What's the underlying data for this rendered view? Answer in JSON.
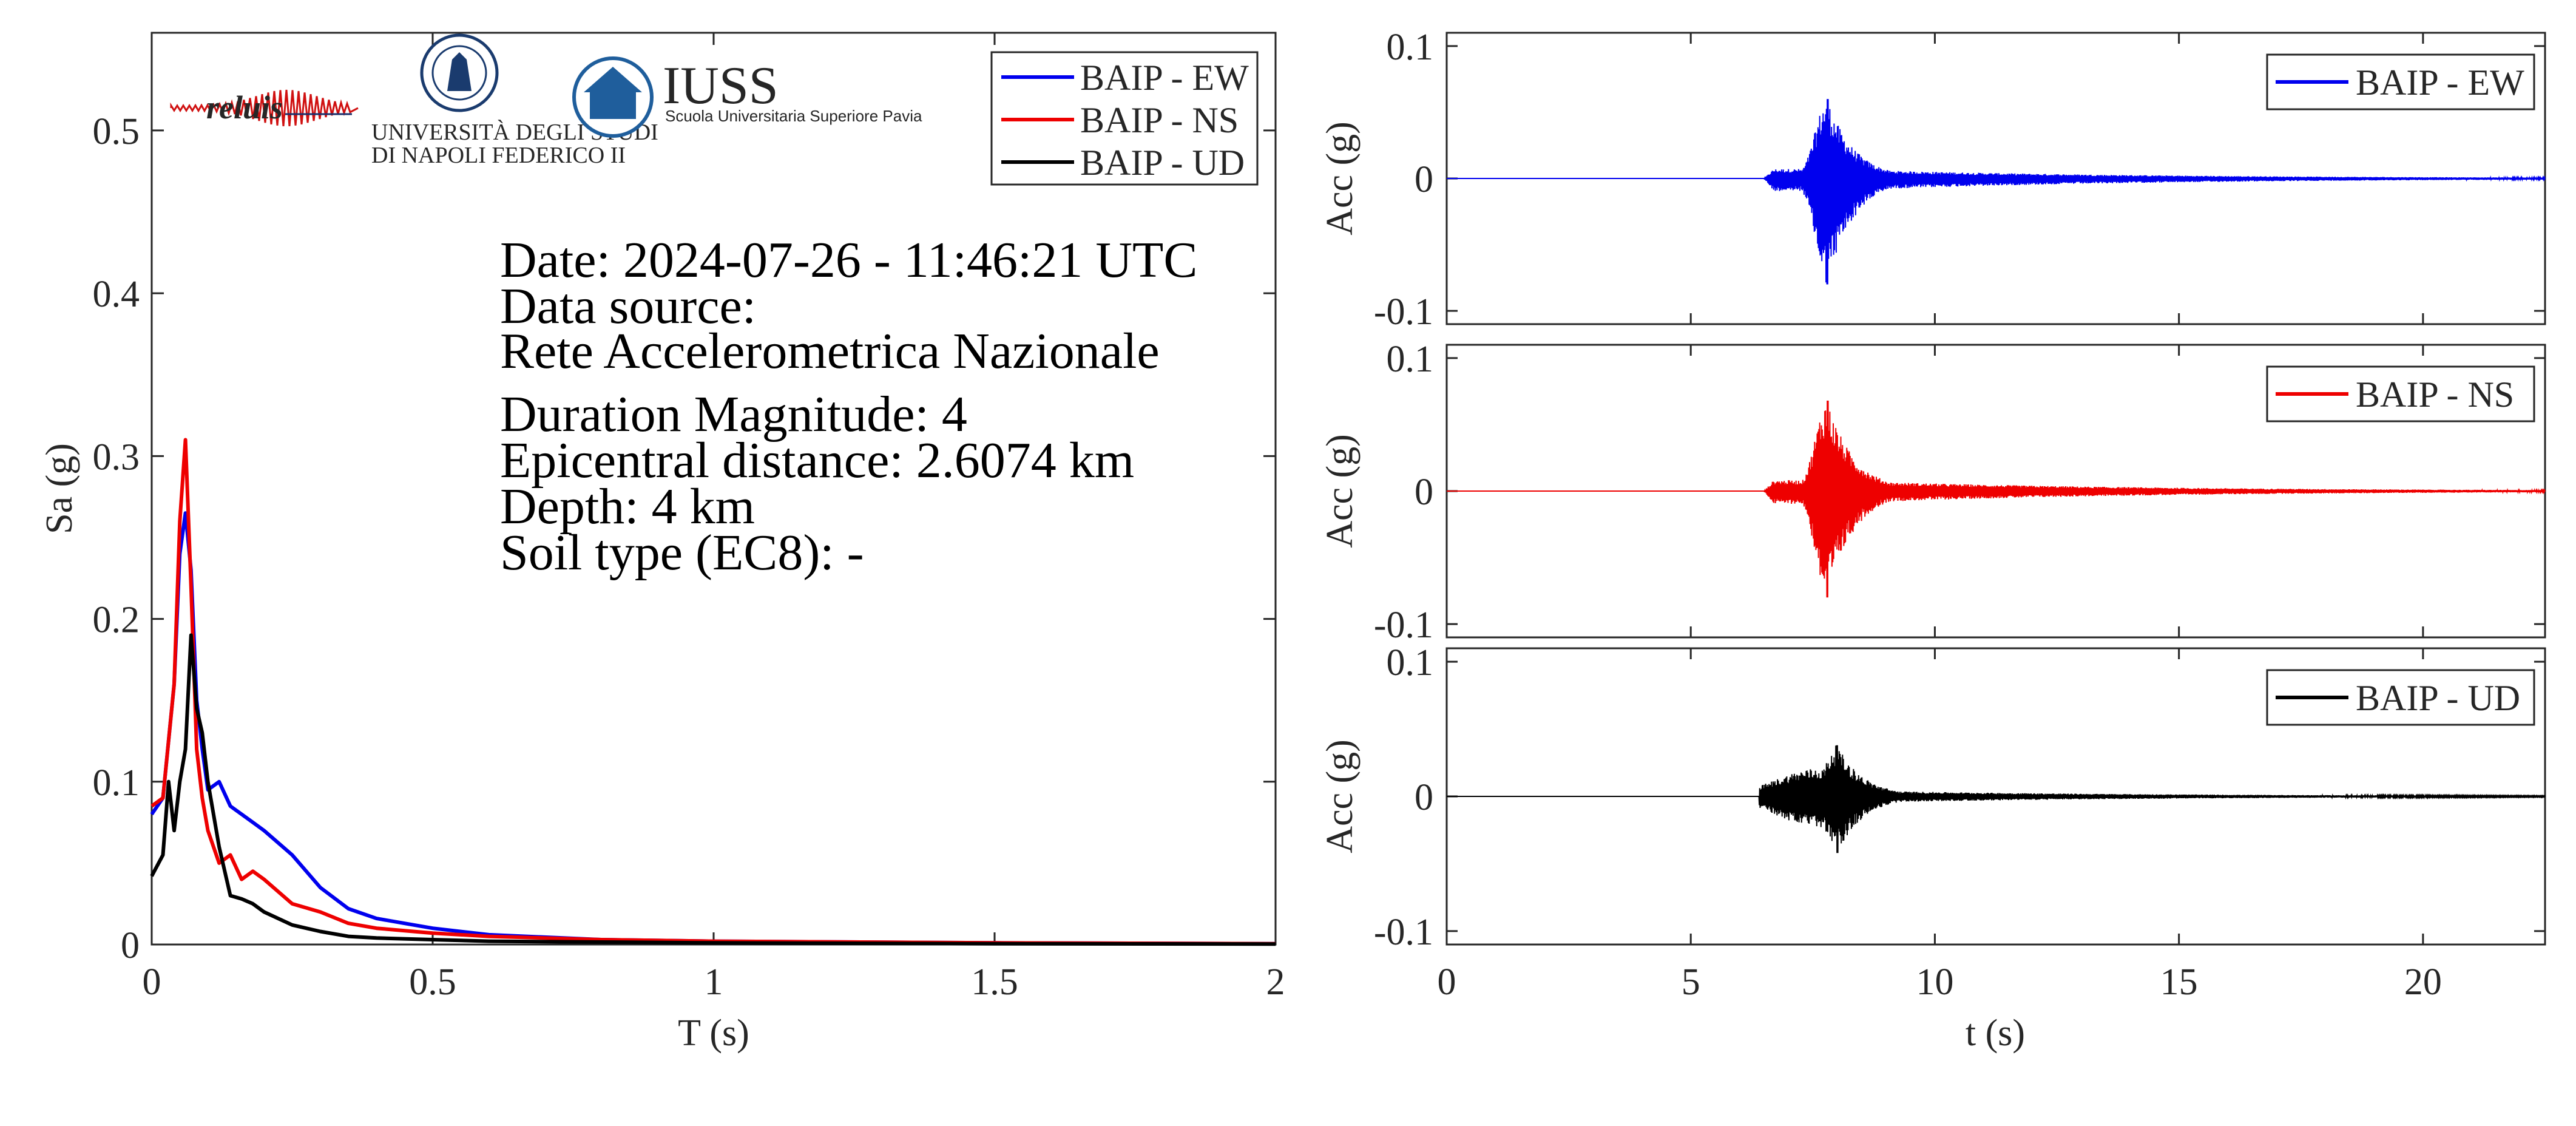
{
  "colors": {
    "ew": "#0000ee",
    "ns": "#ee0000",
    "ud": "#000000",
    "axis": "#262626"
  },
  "info_lines": [
    "Date: 2024-07-26 - 11:46:21 UTC",
    "Data source:",
    "Rete Accelerometrica Nazionale",
    "Duration Magnitude: 4",
    "Epicentral distance: 2.6074 km",
    "Depth: 4 km",
    "Soil type (EC8): -"
  ],
  "logos": {
    "reluis": "reluis",
    "unina_line1": "UNIVERSITÀ DEGLI STUDI",
    "unina_line2": "DI NAPOLI FEDERICO II",
    "iuss": "IUSS",
    "iuss_sub": "Scuola Universitaria Superiore Pavia"
  },
  "chart_data": [
    {
      "type": "line",
      "xlabel": "T (s)",
      "ylabel": "Sa (g)",
      "xlim": [
        0,
        2
      ],
      "ylim": [
        0,
        0.56
      ],
      "xticks": [
        "0",
        "0.5",
        "1",
        "1.5",
        "2"
      ],
      "yticks": [
        "0",
        "0.1",
        "0.2",
        "0.3",
        "0.4",
        "0.5"
      ],
      "legend_position": "top-right",
      "series": [
        {
          "name": "BAIP - EW",
          "x": [
            0,
            0.02,
            0.04,
            0.05,
            0.06,
            0.07,
            0.08,
            0.09,
            0.1,
            0.12,
            0.14,
            0.16,
            0.18,
            0.2,
            0.25,
            0.3,
            0.35,
            0.4,
            0.5,
            0.6,
            0.8,
            1.0,
            1.5,
            2.0
          ],
          "y": [
            0.08,
            0.09,
            0.16,
            0.24,
            0.265,
            0.23,
            0.15,
            0.12,
            0.095,
            0.1,
            0.085,
            0.08,
            0.075,
            0.07,
            0.055,
            0.035,
            0.022,
            0.016,
            0.01,
            0.006,
            0.003,
            0.002,
            0.001,
            0.0005
          ]
        },
        {
          "name": "BAIP - NS",
          "x": [
            0,
            0.02,
            0.04,
            0.05,
            0.06,
            0.07,
            0.08,
            0.09,
            0.1,
            0.12,
            0.14,
            0.16,
            0.18,
            0.2,
            0.25,
            0.3,
            0.35,
            0.4,
            0.5,
            0.6,
            0.8,
            1.0,
            1.5,
            2.0
          ],
          "y": [
            0.085,
            0.09,
            0.16,
            0.26,
            0.31,
            0.22,
            0.12,
            0.09,
            0.07,
            0.05,
            0.055,
            0.04,
            0.045,
            0.04,
            0.025,
            0.02,
            0.013,
            0.01,
            0.007,
            0.005,
            0.003,
            0.002,
            0.001,
            0.0005
          ]
        },
        {
          "name": "BAIP - UD",
          "x": [
            0,
            0.02,
            0.03,
            0.04,
            0.05,
            0.06,
            0.07,
            0.08,
            0.09,
            0.1,
            0.12,
            0.14,
            0.16,
            0.18,
            0.2,
            0.25,
            0.3,
            0.35,
            0.4,
            0.5,
            0.6,
            0.8,
            1.0,
            1.5,
            2.0
          ],
          "y": [
            0.042,
            0.055,
            0.1,
            0.07,
            0.1,
            0.12,
            0.19,
            0.145,
            0.13,
            0.1,
            0.06,
            0.03,
            0.028,
            0.025,
            0.02,
            0.012,
            0.008,
            0.005,
            0.004,
            0.003,
            0.002,
            0.0015,
            0.001,
            0.0005,
            0.0003
          ]
        }
      ]
    },
    {
      "type": "line",
      "xlabel": "",
      "ylabel": "Acc (g)",
      "xlim": [
        0,
        22.5
      ],
      "ylim": [
        -0.11,
        0.11
      ],
      "yticks": [
        "0.1",
        "0",
        "-0.1"
      ],
      "legend_position": "top-right",
      "series": [
        {
          "name": "BAIP - EW",
          "t_start": 6.5,
          "peak_t": 7.8,
          "peak_max": 0.06,
          "peak_min": -0.08
        }
      ]
    },
    {
      "type": "line",
      "xlabel": "",
      "ylabel": "Acc (g)",
      "xlim": [
        0,
        22.5
      ],
      "ylim": [
        -0.11,
        0.11
      ],
      "yticks": [
        "0.1",
        "0",
        "-0.1"
      ],
      "legend_position": "top-right",
      "series": [
        {
          "name": "BAIP - NS",
          "t_start": 6.5,
          "peak_t": 7.8,
          "peak_max": 0.068,
          "peak_min": -0.08
        }
      ]
    },
    {
      "type": "line",
      "xlabel": "t (s)",
      "ylabel": "Acc (g)",
      "xlim": [
        0,
        22.5
      ],
      "ylim": [
        -0.11,
        0.11
      ],
      "xticks": [
        "0",
        "5",
        "10",
        "15",
        "20"
      ],
      "yticks": [
        "0.1",
        "0",
        "-0.1"
      ],
      "legend_position": "top-right",
      "series": [
        {
          "name": "BAIP - UD",
          "t_start": 6.4,
          "peak_t": 8.0,
          "peak_max": 0.038,
          "peak_min": -0.042
        }
      ]
    }
  ]
}
